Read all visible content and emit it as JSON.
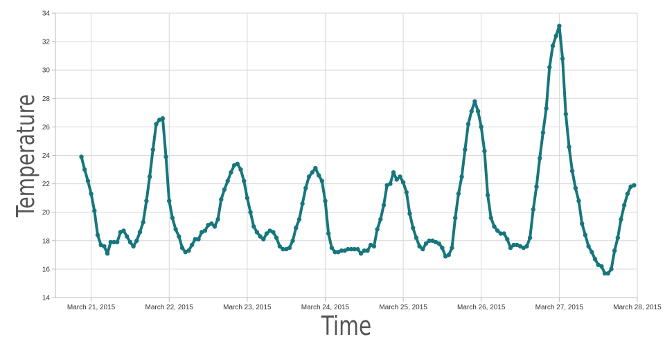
{
  "chart_data": {
    "type": "line",
    "xlabel": "Time",
    "ylabel": "Temperature",
    "ylim": [
      14,
      34
    ],
    "yticks": [
      14,
      16,
      18,
      20,
      22,
      24,
      26,
      28,
      30,
      32,
      34
    ],
    "xlim": [
      "2015-03-20T13:00",
      "2015-03-28T00:00"
    ],
    "xticks": [
      {
        "date": "2015-03-21",
        "label": "March 21, 2015"
      },
      {
        "date": "2015-03-22",
        "label": "March 22, 2015"
      },
      {
        "date": "2015-03-23",
        "label": "March 23, 2015"
      },
      {
        "date": "2015-03-24",
        "label": "March 24, 2015"
      },
      {
        "date": "2015-03-25",
        "label": "March 25, 2015"
      },
      {
        "date": "2015-03-26",
        "label": "March 26, 2015"
      },
      {
        "date": "2015-03-27",
        "label": "March 27, 2015"
      },
      {
        "date": "2015-03-28",
        "label": "March 28, 2015"
      }
    ],
    "grid": true,
    "colors": {
      "series": "#17767d",
      "grid": "#d6d6d6",
      "axis": "#bbbbbb"
    },
    "series": [
      {
        "x": [
          "2015-03-20T21:00",
          "2015-03-20T22:00",
          "2015-03-20T23:00",
          "2015-03-21T00:00",
          "2015-03-21T01:00",
          "2015-03-21T02:00",
          "2015-03-21T03:00",
          "2015-03-21T04:00",
          "2015-03-21T05:00",
          "2015-03-21T06:00",
          "2015-03-21T07:00",
          "2015-03-21T08:00",
          "2015-03-21T09:00",
          "2015-03-21T10:00",
          "2015-03-21T11:00",
          "2015-03-21T12:00",
          "2015-03-21T13:00",
          "2015-03-21T14:00",
          "2015-03-21T15:00",
          "2015-03-21T16:00",
          "2015-03-21T17:00",
          "2015-03-21T18:00",
          "2015-03-21T19:00",
          "2015-03-21T20:00",
          "2015-03-21T21:00",
          "2015-03-21T22:00",
          "2015-03-21T23:00",
          "2015-03-22T00:00",
          "2015-03-22T01:00",
          "2015-03-22T02:00",
          "2015-03-22T03:00",
          "2015-03-22T04:00",
          "2015-03-22T05:00",
          "2015-03-22T06:00",
          "2015-03-22T07:00",
          "2015-03-22T08:00",
          "2015-03-22T09:00",
          "2015-03-22T10:00",
          "2015-03-22T11:00",
          "2015-03-22T12:00",
          "2015-03-22T13:00",
          "2015-03-22T14:00",
          "2015-03-22T15:00",
          "2015-03-22T16:00",
          "2015-03-22T17:00",
          "2015-03-22T18:00",
          "2015-03-22T19:00",
          "2015-03-22T20:00",
          "2015-03-22T21:00",
          "2015-03-22T22:00",
          "2015-03-22T23:00",
          "2015-03-23T00:00",
          "2015-03-23T01:00",
          "2015-03-23T02:00",
          "2015-03-23T03:00",
          "2015-03-23T04:00",
          "2015-03-23T05:00",
          "2015-03-23T06:00",
          "2015-03-23T07:00",
          "2015-03-23T08:00",
          "2015-03-23T09:00",
          "2015-03-23T10:00",
          "2015-03-23T11:00",
          "2015-03-23T12:00",
          "2015-03-23T13:00",
          "2015-03-23T14:00",
          "2015-03-23T15:00",
          "2015-03-23T16:00",
          "2015-03-23T17:00",
          "2015-03-23T18:00",
          "2015-03-23T19:00",
          "2015-03-23T20:00",
          "2015-03-23T21:00",
          "2015-03-23T22:00",
          "2015-03-23T23:00",
          "2015-03-24T00:00",
          "2015-03-24T01:00",
          "2015-03-24T02:00",
          "2015-03-24T03:00",
          "2015-03-24T04:00",
          "2015-03-24T05:00",
          "2015-03-24T06:00",
          "2015-03-24T07:00",
          "2015-03-24T08:00",
          "2015-03-24T09:00",
          "2015-03-24T10:00",
          "2015-03-24T11:00",
          "2015-03-24T12:00",
          "2015-03-24T13:00",
          "2015-03-24T14:00",
          "2015-03-24T15:00",
          "2015-03-24T16:00",
          "2015-03-24T17:00",
          "2015-03-24T18:00",
          "2015-03-24T19:00",
          "2015-03-24T20:00",
          "2015-03-24T21:00",
          "2015-03-24T22:00",
          "2015-03-24T23:00",
          "2015-03-25T00:00",
          "2015-03-25T01:00",
          "2015-03-25T02:00",
          "2015-03-25T03:00",
          "2015-03-25T04:00",
          "2015-03-25T05:00",
          "2015-03-25T06:00",
          "2015-03-25T07:00",
          "2015-03-25T08:00",
          "2015-03-25T09:00",
          "2015-03-25T10:00",
          "2015-03-25T11:00",
          "2015-03-25T12:00",
          "2015-03-25T13:00",
          "2015-03-25T14:00",
          "2015-03-25T15:00",
          "2015-03-25T16:00",
          "2015-03-25T17:00",
          "2015-03-25T18:00",
          "2015-03-25T19:00",
          "2015-03-25T20:00",
          "2015-03-25T21:00",
          "2015-03-25T22:00",
          "2015-03-25T23:00",
          "2015-03-26T00:00",
          "2015-03-26T01:00",
          "2015-03-26T02:00",
          "2015-03-26T03:00",
          "2015-03-26T04:00",
          "2015-03-26T05:00",
          "2015-03-26T06:00",
          "2015-03-26T07:00",
          "2015-03-26T08:00",
          "2015-03-26T09:00",
          "2015-03-26T10:00",
          "2015-03-26T11:00",
          "2015-03-26T12:00",
          "2015-03-26T13:00",
          "2015-03-26T14:00",
          "2015-03-26T15:00",
          "2015-03-26T16:00",
          "2015-03-26T17:00",
          "2015-03-26T18:00",
          "2015-03-26T19:00",
          "2015-03-26T20:00",
          "2015-03-26T21:00",
          "2015-03-26T22:00",
          "2015-03-26T23:00",
          "2015-03-27T00:00",
          "2015-03-27T01:00",
          "2015-03-27T02:00",
          "2015-03-27T03:00",
          "2015-03-27T04:00",
          "2015-03-27T05:00",
          "2015-03-27T06:00",
          "2015-03-27T07:00",
          "2015-03-27T08:00",
          "2015-03-27T09:00",
          "2015-03-27T10:00",
          "2015-03-27T11:00",
          "2015-03-27T12:00",
          "2015-03-27T13:00",
          "2015-03-27T14:00",
          "2015-03-27T15:00",
          "2015-03-27T16:00",
          "2015-03-27T17:00",
          "2015-03-27T18:00",
          "2015-03-27T19:00",
          "2015-03-27T20:00",
          "2015-03-27T21:00",
          "2015-03-27T22:00",
          "2015-03-27T23:00"
        ],
        "y": [
          23.9,
          23.0,
          22.2,
          21.3,
          20.1,
          18.4,
          17.7,
          17.6,
          17.1,
          17.9,
          17.9,
          17.9,
          18.6,
          18.7,
          18.3,
          17.9,
          17.6,
          18.0,
          18.6,
          19.3,
          20.8,
          22.5,
          24.4,
          26.2,
          26.5,
          26.6,
          23.9,
          20.8,
          19.6,
          18.8,
          18.3,
          17.5,
          17.2,
          17.3,
          17.7,
          18.1,
          18.1,
          18.6,
          18.7,
          19.1,
          19.2,
          19.0,
          19.5,
          20.9,
          21.6,
          22.2,
          22.8,
          23.3,
          23.4,
          23.0,
          22.2,
          21.0,
          20.0,
          19.0,
          18.6,
          18.3,
          18.1,
          18.5,
          18.7,
          18.6,
          18.2,
          17.6,
          17.4,
          17.4,
          17.5,
          18.0,
          18.9,
          19.5,
          20.6,
          21.7,
          22.5,
          22.8,
          23.1,
          22.6,
          22.2,
          20.8,
          18.5,
          17.5,
          17.2,
          17.2,
          17.3,
          17.3,
          17.4,
          17.4,
          17.4,
          17.4,
          17.1,
          17.3,
          17.3,
          17.7,
          17.6,
          18.8,
          19.5,
          20.5,
          21.9,
          22.0,
          22.8,
          22.3,
          22.5,
          22.1,
          21.4,
          19.9,
          18.9,
          18.2,
          17.6,
          17.4,
          17.8,
          18.0,
          18.0,
          17.9,
          17.8,
          17.5,
          16.9,
          17.0,
          17.5,
          19.6,
          21.3,
          22.5,
          24.4,
          26.2,
          27.1,
          27.8,
          27.1,
          26.0,
          24.3,
          21.2,
          19.6,
          19.0,
          18.7,
          18.5,
          18.5,
          18.1,
          17.5,
          17.7,
          17.7,
          17.6,
          17.5,
          17.6,
          18.2,
          20.2,
          21.8,
          23.8,
          25.6,
          27.3,
          30.2,
          31.7,
          32.4,
          33.1,
          30.8,
          26.9,
          24.6,
          22.9,
          21.7,
          20.8,
          19.2,
          18.4,
          17.6,
          17.2,
          16.7,
          16.3,
          16.2,
          15.7,
          15.7,
          16.0,
          17.3,
          18.2,
          19.5,
          20.5,
          21.3,
          21.8,
          21.9
        ]
      }
    ]
  }
}
